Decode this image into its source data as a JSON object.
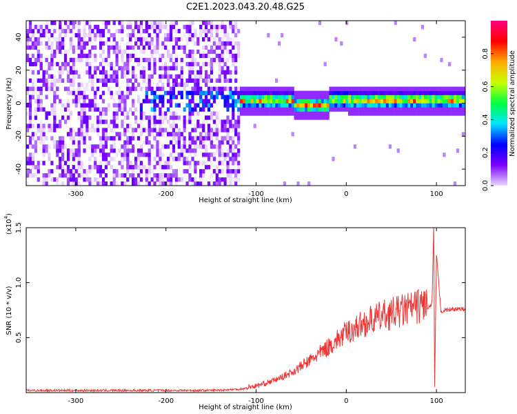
{
  "figure": {
    "title": "C2E1.2023.043.20.48.G25"
  },
  "chart_data": [
    {
      "type": "heatmap",
      "title": "C2E1.2023.043.20.48.G25",
      "xlabel": "Height of straight line (km)",
      "ylabel": "Frequency (Hz)",
      "xlim": [
        -355,
        132
      ],
      "ylim": [
        -50,
        50
      ],
      "x_ticks": [
        -300,
        -200,
        -100,
        0,
        100
      ],
      "y_ticks": [
        40,
        20,
        0,
        -20,
        -40
      ],
      "colorbar": {
        "label": "Normalized spectral amplitude",
        "range": [
          0.0,
          1.0
        ],
        "ticks": [
          0.0,
          0.2,
          0.4,
          0.6,
          0.8
        ],
        "colormap": [
          "#e8d8ff",
          "#7b00ff",
          "#0000ff",
          "#00e5ff",
          "#00ff40",
          "#c8ff00",
          "#ffaa00",
          "#ff0000",
          "#ff0080"
        ]
      },
      "regions": [
        {
          "x_range": [
            -355,
            -118
          ],
          "frequency_range": [
            -50,
            50
          ],
          "amplitude": [
            0.0,
            0.15
          ],
          "description": "broadband noise"
        },
        {
          "x_range": [
            -118,
            132
          ],
          "frequency_center": 0,
          "amplitude": [
            0.1,
            0.95
          ],
          "description": "narrow signal band near 0 Hz"
        }
      ],
      "grid": false
    },
    {
      "type": "line",
      "xlabel": "Height of straight line (km)",
      "ylabel": "SNR (10 * v/v)",
      "multiplier_label": "(x10",
      "multiplier_exp": "4",
      "multiplier_close": ")",
      "xlim": [
        -355,
        132
      ],
      "ylim": [
        0,
        1.5
      ],
      "x_ticks": [
        -300,
        -200,
        -100,
        0,
        100
      ],
      "y_ticks": [
        1.5,
        1.0,
        0.5
      ],
      "y_tick_labels": [
        "1.5",
        "1.0",
        "0.5"
      ],
      "color": "#ee3333",
      "series": [
        {
          "x": [
            -355,
            -300,
            -250,
            -200,
            -150,
            -120,
            -100,
            -80,
            -60,
            -40,
            -20,
            0,
            20,
            40,
            60,
            80,
            90,
            95,
            97,
            98,
            100,
            105,
            110,
            120,
            132
          ],
          "y": [
            0.02,
            0.02,
            0.02,
            0.02,
            0.02,
            0.03,
            0.05,
            0.1,
            0.17,
            0.27,
            0.38,
            0.5,
            0.58,
            0.64,
            0.68,
            0.72,
            0.76,
            0.8,
            1.5,
            0.05,
            1.25,
            0.74,
            0.75,
            0.76,
            0.76
          ]
        }
      ],
      "grid": false
    }
  ]
}
